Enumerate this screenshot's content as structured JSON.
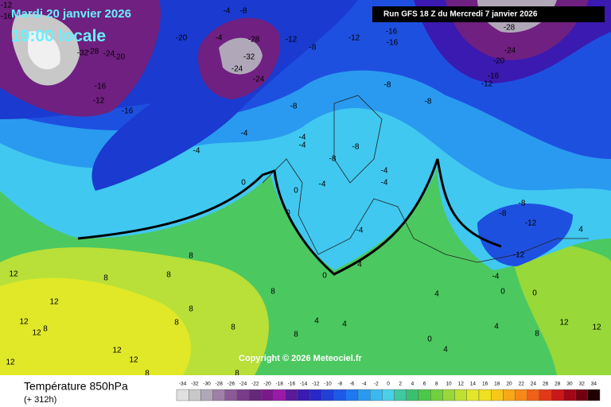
{
  "header": {
    "date": "Mardi 20 janvier 2026",
    "time": "19:00 locale",
    "run": "Run GFS 18 Z du Mercredi 7 janvier 2026"
  },
  "copyright": "Copyright © 2026 Meteociel.fr",
  "footer": {
    "title": "Température 850hPa",
    "lead": "(+ 312h)"
  },
  "contour_labels": [
    -12,
    -16,
    -32,
    -28,
    -24,
    -20,
    -16,
    -12,
    -16,
    -20,
    -4,
    -4,
    -8,
    -28,
    -32,
    -24,
    -24,
    -12,
    -8,
    -12,
    -16,
    -16,
    -8,
    -8,
    -28,
    -24,
    -20,
    -16,
    -12,
    -8,
    -4,
    -4,
    -4,
    -4,
    0,
    0,
    0,
    -4,
    -4,
    -4,
    -4,
    -8,
    -8,
    -8,
    -8,
    -12,
    -12,
    -4,
    0,
    4,
    4,
    4,
    4,
    4,
    4,
    4,
    8,
    8,
    8,
    8,
    8,
    8,
    8,
    8,
    8,
    8,
    8,
    8,
    12,
    12,
    12,
    12,
    12,
    12,
    12,
    12,
    12,
    0,
    0,
    0
  ],
  "legend": {
    "labels": [
      -34,
      -32,
      -30,
      -28,
      -26,
      -24,
      -22,
      -20,
      -18,
      -16,
      -14,
      -12,
      -10,
      -8,
      -6,
      -4,
      -2,
      0,
      2,
      4,
      6,
      8,
      10,
      12,
      14,
      16,
      18,
      20,
      22,
      24,
      26,
      28,
      30,
      32,
      34
    ],
    "colors": [
      "#e0e0e0",
      "#c8c8c8",
      "#b0a8b8",
      "#a080a8",
      "#8c5898",
      "#783c88",
      "#642878",
      "#7a1a8a",
      "#9a1aa8",
      "#5a1a9a",
      "#3a1ab0",
      "#2828c8",
      "#2040d8",
      "#1e5ae8",
      "#1e78f0",
      "#2a9af0",
      "#3cb8f0",
      "#4ad0e8",
      "#40c8a0",
      "#3cc070",
      "#4cc848",
      "#70d040",
      "#98d838",
      "#c0e030",
      "#e0e828",
      "#f0e020",
      "#f8c818",
      "#f8a818",
      "#f88818",
      "#f06018",
      "#e03818",
      "#c81818",
      "#a00818",
      "#700010",
      "#200000"
    ]
  }
}
